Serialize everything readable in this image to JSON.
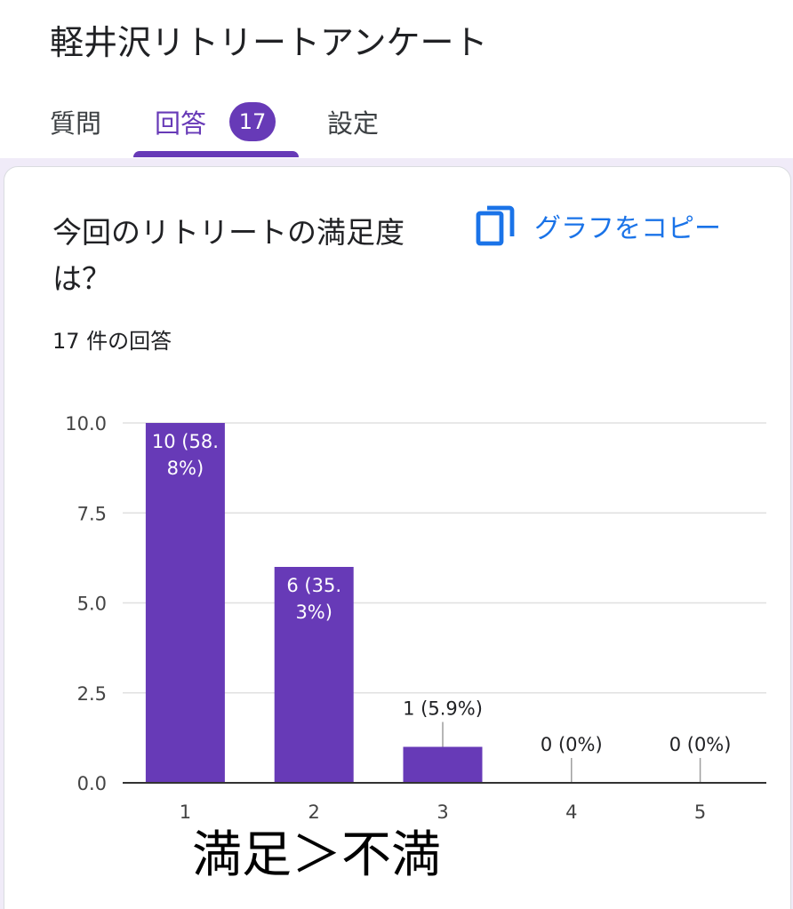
{
  "form": {
    "title": "軽井沢リトリートアンケート"
  },
  "tabs": {
    "questions": "質問",
    "responses": "回答",
    "responses_count": "17",
    "settings": "設定"
  },
  "card": {
    "question": "今回のリトリートの満足度は？",
    "copy_label": "グラフをコピー",
    "response_count": "17 件の回答"
  },
  "caption": "満足＞不満",
  "colors": {
    "accent": "#673ab7",
    "link": "#1a73e8"
  },
  "chart_data": {
    "type": "bar",
    "categories": [
      "1",
      "2",
      "3",
      "4",
      "5"
    ],
    "values": [
      10,
      6,
      1,
      0,
      0
    ],
    "data_labels": [
      "10 (58.8%)",
      "6 (35.3%)",
      "1 (5.9%)",
      "0 (0%)",
      "0 (0%)"
    ],
    "yticks": [
      "0.0",
      "2.5",
      "5.0",
      "7.5",
      "10.0"
    ],
    "ylim": [
      0,
      10
    ],
    "grid": true,
    "bar_color": "#673ab7"
  }
}
